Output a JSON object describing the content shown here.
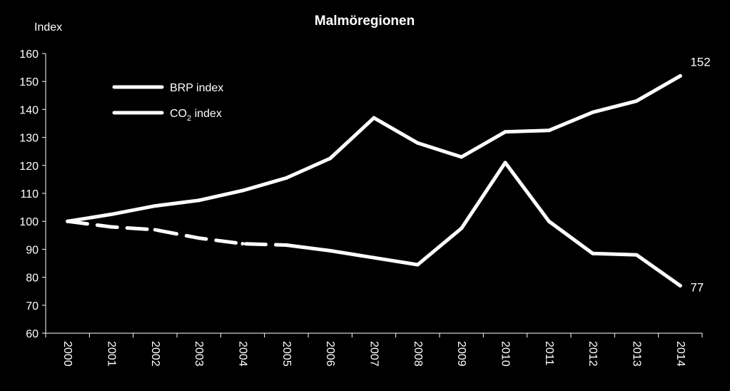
{
  "chart_data": {
    "type": "line",
    "title": "Malmöregionen",
    "ylabel": "Index",
    "xlabel": "",
    "ylim": [
      60,
      160
    ],
    "yticks": [
      60,
      70,
      80,
      90,
      100,
      110,
      120,
      130,
      140,
      150,
      160
    ],
    "categories": [
      "2000",
      "2001",
      "2002",
      "2003",
      "2004",
      "2005",
      "2006",
      "2007",
      "2008",
      "2009",
      "2010",
      "2011",
      "2012",
      "2013",
      "2014"
    ],
    "grid": false,
    "legend_position": "top-left",
    "series": [
      {
        "name": "BRP index",
        "color": "#ffffff",
        "values": [
          100,
          102.5,
          105.5,
          107.5,
          111,
          115.5,
          122.5,
          137,
          128,
          123,
          132,
          132.5,
          139,
          143,
          152
        ]
      },
      {
        "name": "CO2 index",
        "name_main": "CO",
        "name_sub": "2",
        "name_rest": " index",
        "color": "#ffffff",
        "dashed_until_index": 5,
        "values": [
          100,
          98,
          97,
          94,
          92,
          91.5,
          89.5,
          87,
          84.5,
          97.5,
          121,
          100,
          88.5,
          88,
          77
        ]
      }
    ],
    "end_labels": [
      "152",
      "77"
    ]
  }
}
